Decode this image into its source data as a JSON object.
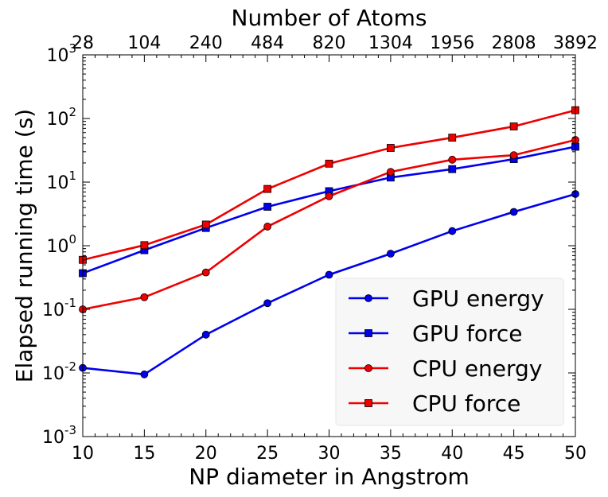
{
  "chart_data": {
    "type": "line",
    "x_values": [
      10,
      15,
      20,
      25,
      30,
      35,
      40,
      45,
      50
    ],
    "xlabel": "NP diameter in Angstrom",
    "ylabel": "Elapsed running time (s)",
    "top_xlabel": "Number of Atoms",
    "top_tick_labels": [
      "28",
      "104",
      "240",
      "484",
      "820",
      "1304",
      "1956",
      "2808",
      "3892"
    ],
    "xlim": [
      10,
      50
    ],
    "ylim": [
      0.001,
      1000
    ],
    "yscale": "log",
    "y_tick_labels": [
      {
        "value": 0.001,
        "base": "10",
        "exp": "-3"
      },
      {
        "value": 0.01,
        "base": "10",
        "exp": "-2"
      },
      {
        "value": 0.1,
        "base": "10",
        "exp": "-1"
      },
      {
        "value": 1,
        "base": "10",
        "exp": "0"
      },
      {
        "value": 10,
        "base": "10",
        "exp": "1"
      },
      {
        "value": 100,
        "base": "10",
        "exp": "2"
      },
      {
        "value": 1000,
        "base": "10",
        "exp": "3"
      }
    ],
    "grid": false,
    "legend_position": "lower-right",
    "series": [
      {
        "name": "GPU energy",
        "color": "#0000ee",
        "marker": "circle",
        "values": [
          0.012,
          0.0095,
          0.04,
          0.125,
          0.35,
          0.75,
          1.7,
          3.4,
          6.5
        ]
      },
      {
        "name": "GPU force",
        "color": "#0000ee",
        "marker": "square",
        "values": [
          0.37,
          0.85,
          1.9,
          4.1,
          7.2,
          11.8,
          16.0,
          23.0,
          36.0
        ]
      },
      {
        "name": "CPU energy",
        "color": "#ee0000",
        "marker": "circle",
        "values": [
          0.1,
          0.155,
          0.38,
          2.0,
          6.0,
          14.5,
          22.5,
          26.5,
          46.0
        ]
      },
      {
        "name": "CPU force",
        "color": "#ee0000",
        "marker": "square",
        "values": [
          0.6,
          1.02,
          2.15,
          7.8,
          19.5,
          34.5,
          50.0,
          75.0,
          135.0
        ]
      }
    ]
  }
}
